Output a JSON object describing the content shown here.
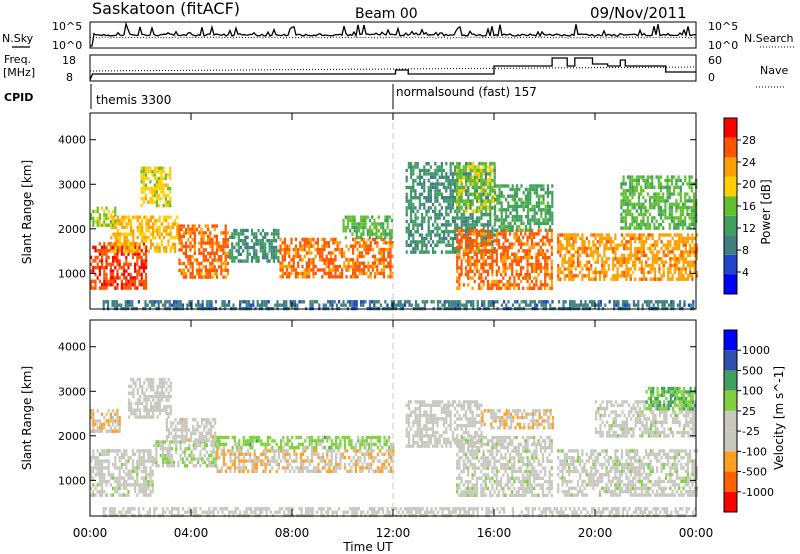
{
  "header": {
    "station": "Saskatoon (fitACF)",
    "beam": "Beam 00",
    "date": "09/Nov/2011"
  },
  "top_panels": {
    "nsky": {
      "label": "N.Sky",
      "ticks": [
        "10^5",
        "10^0"
      ]
    },
    "nsearch": {
      "label": "N.Search",
      "ticks": [
        "10^5",
        "10^0"
      ]
    },
    "freq": {
      "label_lines": [
        "Freq.",
        "[MHz]"
      ],
      "ticks": [
        "18",
        "8"
      ]
    },
    "nave": {
      "label": "Nave",
      "ticks": [
        "60",
        "0"
      ]
    },
    "cpid": {
      "label": "CPID",
      "segments": [
        {
          "name": "themis 3300",
          "start": 0.0
        },
        {
          "name": "normalsound (fast) 157",
          "start": 12.0
        }
      ]
    }
  },
  "colors": {
    "power": [
      "#0000ff",
      "#2244cc",
      "#3f7f7f",
      "#40a060",
      "#62c030",
      "#ffd000",
      "#ffa000",
      "#ff5500",
      "#ff0000"
    ],
    "velocity": [
      "#ff0000",
      "#ff6000",
      "#ffa020",
      "#c8c8c0",
      "#c8c8c0",
      "#80d040",
      "#40a060",
      "#3050b0",
      "#0000ff"
    ]
  },
  "chart_data": [
    {
      "type": "heatmap",
      "panel": "power",
      "ylabel": "Slant Range [km]",
      "xlabel": "Time UT",
      "yticks": [
        "1000",
        "2000",
        "3000",
        "4000"
      ],
      "ylim": [
        200,
        4600
      ],
      "xlim": [
        0,
        24
      ],
      "colorbar": {
        "label": "Power [dB]",
        "ticks": [
          "28",
          "24",
          "20",
          "16",
          "12",
          "8",
          "4"
        ],
        "range": [
          0,
          30
        ]
      },
      "regions": [
        {
          "t0": 0.0,
          "t1": 2.2,
          "r0": 700,
          "r1": 1700,
          "value": 26
        },
        {
          "t0": 0.8,
          "t1": 3.5,
          "r0": 1500,
          "r1": 2300,
          "value": 20
        },
        {
          "t0": 2.0,
          "t1": 3.2,
          "r0": 2500,
          "r1": 3400,
          "value": 18
        },
        {
          "t0": 0.0,
          "t1": 1.0,
          "r0": 2100,
          "r1": 2500,
          "value": 16
        },
        {
          "t0": 3.5,
          "t1": 5.5,
          "r0": 900,
          "r1": 2100,
          "value": 24
        },
        {
          "t0": 5.5,
          "t1": 7.5,
          "r0": 1300,
          "r1": 2000,
          "value": 10
        },
        {
          "t0": 7.5,
          "t1": 12.0,
          "r0": 900,
          "r1": 1800,
          "value": 24
        },
        {
          "t0": 10.0,
          "t1": 12.0,
          "r0": 1800,
          "r1": 2300,
          "value": 14
        },
        {
          "t0": 12.5,
          "t1": 16.0,
          "r0": 1500,
          "r1": 3500,
          "value": 10
        },
        {
          "t0": 14.5,
          "t1": 18.3,
          "r0": 700,
          "r1": 2000,
          "value": 24
        },
        {
          "t0": 14.5,
          "t1": 16.0,
          "r0": 2400,
          "r1": 3500,
          "value": 16
        },
        {
          "t0": 16.0,
          "t1": 18.3,
          "r0": 2000,
          "r1": 3000,
          "value": 12
        },
        {
          "t0": 18.5,
          "t1": 24.0,
          "r0": 900,
          "r1": 1900,
          "value": 22
        },
        {
          "t0": 21.0,
          "t1": 24.0,
          "r0": 2000,
          "r1": 3200,
          "value": 14
        },
        {
          "t0": 0.5,
          "t1": 24.0,
          "r0": 200,
          "r1": 400,
          "value": 8
        }
      ]
    },
    {
      "type": "heatmap",
      "panel": "velocity",
      "ylabel": "Slant Range [km]",
      "xlabel": "Time UT",
      "yticks": [
        "1000",
        "2000",
        "3000",
        "4000"
      ],
      "ylim": [
        200,
        4600
      ],
      "xlim": [
        0,
        24
      ],
      "xticks": [
        "00:00",
        "04:00",
        "08:00",
        "12:00",
        "16:00",
        "20:00",
        "00:00"
      ],
      "colorbar": {
        "label": "Velocity [m s^-1]",
        "ticks": [
          "1000",
          "500",
          "100",
          "25",
          "-25",
          "-100",
          "-500",
          "-1000"
        ],
        "range": [
          -1000,
          1000
        ]
      },
      "regions": [
        {
          "t0": 0.0,
          "t1": 2.5,
          "r0": 700,
          "r1": 1700,
          "value": 0
        },
        {
          "t0": 0.0,
          "t1": 1.2,
          "r0": 2100,
          "r1": 2600,
          "value": -300
        },
        {
          "t0": 1.5,
          "t1": 3.2,
          "r0": 2400,
          "r1": 3300,
          "value": -200
        },
        {
          "t0": 2.5,
          "t1": 5.0,
          "r0": 1300,
          "r1": 1900,
          "value": 80
        },
        {
          "t0": 3.0,
          "t1": 5.0,
          "r0": 1900,
          "r1": 2400,
          "value": -200
        },
        {
          "t0": 5.0,
          "t1": 12.0,
          "r0": 1200,
          "r1": 1700,
          "value": -300
        },
        {
          "t0": 5.0,
          "t1": 12.0,
          "r0": 1700,
          "r1": 2000,
          "value": 200
        },
        {
          "t0": 12.5,
          "t1": 15.5,
          "r0": 1800,
          "r1": 2800,
          "value": -150
        },
        {
          "t0": 14.5,
          "t1": 18.3,
          "r0": 700,
          "r1": 2000,
          "value": 0
        },
        {
          "t0": 15.5,
          "t1": 18.3,
          "r0": 2200,
          "r1": 2600,
          "value": -300
        },
        {
          "t0": 18.5,
          "t1": 24.0,
          "r0": 700,
          "r1": 1700,
          "value": 0
        },
        {
          "t0": 20.0,
          "t1": 24.0,
          "r0": 2000,
          "r1": 2800,
          "value": 0
        },
        {
          "t0": 22.0,
          "t1": 24.0,
          "r0": 2600,
          "r1": 3100,
          "value": 300
        },
        {
          "t0": 0.5,
          "t1": 24.0,
          "r0": 200,
          "r1": 400,
          "value": -150
        }
      ]
    }
  ]
}
